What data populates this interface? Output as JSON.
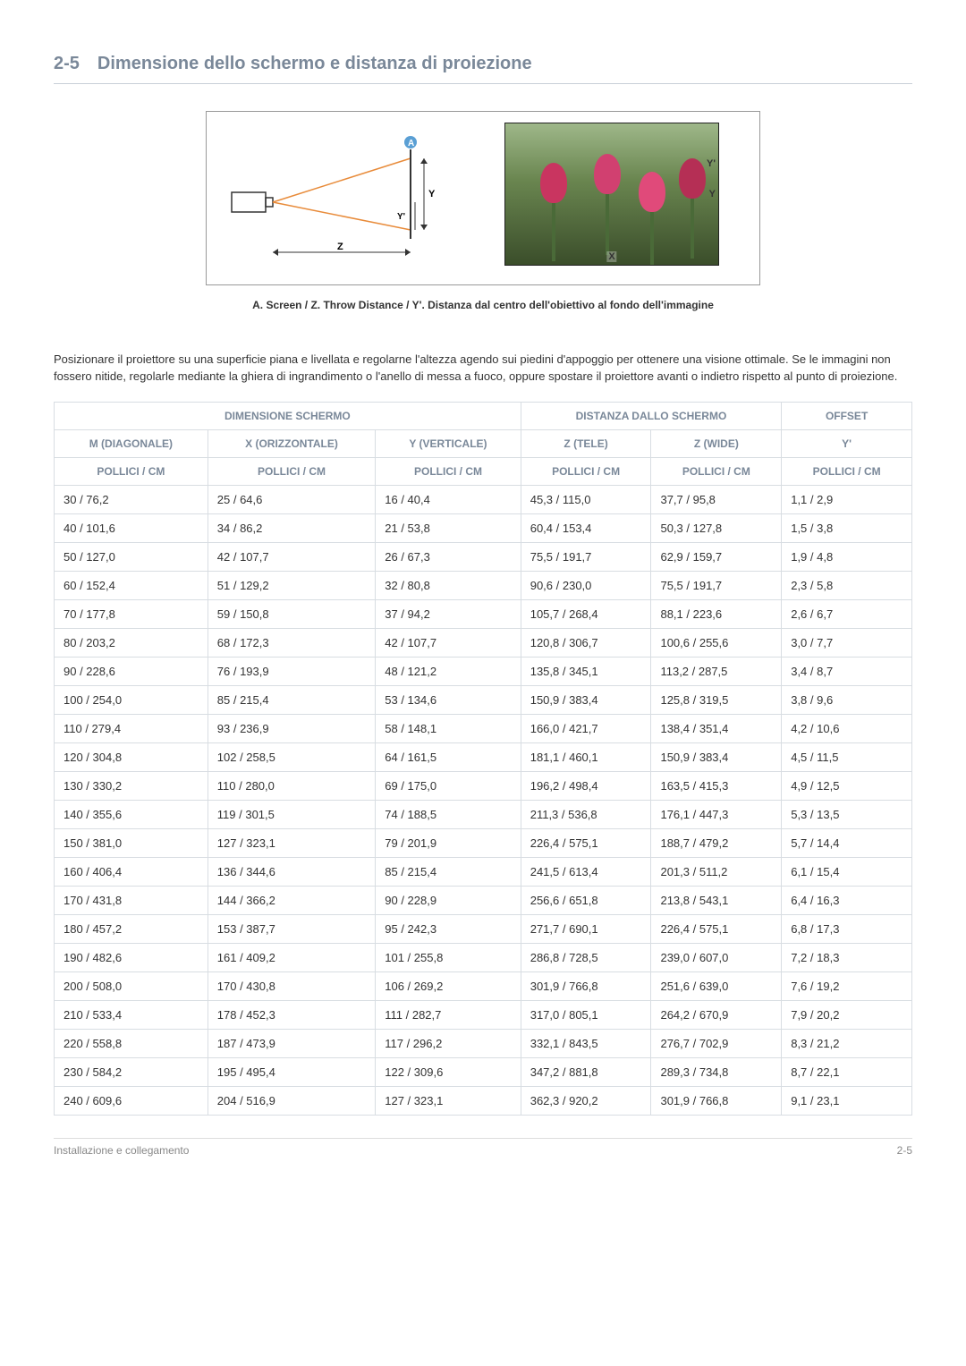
{
  "section": {
    "number": "2-5",
    "title": "Dimensione dello schermo e distanza di proiezione"
  },
  "diagram": {
    "caption": "A. Screen / Z. Throw Distance / Y'. Distanza dal centro dell'obiettivo al fondo dell'immagine",
    "labels": {
      "A": "A",
      "Z": "Z",
      "Y": "Y",
      "Yp": "Y'",
      "X": "X"
    }
  },
  "paragraph": "Posizionare il proiettore su una superficie piana e livellata e regolarne l'altezza agendo sui piedini d'appoggio per ottenere una visione ottimale. Se le immagini non fossero nitide, regolarle mediante la ghiera di ingrandimento o l'anello di messa a fuoco, oppure spostare il proiettore avanti o indietro rispetto al punto di proiezione.",
  "table": {
    "group_headers": [
      "DIMENSIONE SCHERMO",
      "DISTANZA DALLO SCHERMO",
      "OFFSET"
    ],
    "sub_headers": [
      "M (DIAGONALE)",
      "X (ORIZZONTALE)",
      "Y (VERTICALE)",
      "Z (TELE)",
      "Z (WIDE)",
      "Y'"
    ],
    "unit_header": "POLLICI / CM",
    "rows": [
      [
        "30 / 76,2",
        "25 / 64,6",
        "16 / 40,4",
        "45,3 / 115,0",
        "37,7 / 95,8",
        "1,1 / 2,9"
      ],
      [
        "40 / 101,6",
        "34 / 86,2",
        "21 / 53,8",
        "60,4 / 153,4",
        "50,3 / 127,8",
        "1,5 / 3,8"
      ],
      [
        "50 / 127,0",
        "42 / 107,7",
        "26 / 67,3",
        "75,5 / 191,7",
        "62,9 / 159,7",
        "1,9 / 4,8"
      ],
      [
        "60 / 152,4",
        "51 / 129,2",
        "32 / 80,8",
        "90,6 / 230,0",
        "75,5 / 191,7",
        "2,3 / 5,8"
      ],
      [
        "70 / 177,8",
        "59 / 150,8",
        "37 / 94,2",
        "105,7 / 268,4",
        "88,1 / 223,6",
        "2,6 / 6,7"
      ],
      [
        "80 / 203,2",
        "68 / 172,3",
        "42 / 107,7",
        "120,8 / 306,7",
        "100,6 / 255,6",
        "3,0 / 7,7"
      ],
      [
        "90 / 228,6",
        "76 / 193,9",
        "48 / 121,2",
        "135,8 / 345,1",
        "113,2 / 287,5",
        "3,4 / 8,7"
      ],
      [
        "100 / 254,0",
        "85 / 215,4",
        "53 / 134,6",
        "150,9 / 383,4",
        "125,8 / 319,5",
        "3,8 / 9,6"
      ],
      [
        "110 / 279,4",
        "93 / 236,9",
        "58 / 148,1",
        "166,0 / 421,7",
        "138,4 / 351,4",
        "4,2 / 10,6"
      ],
      [
        "120 / 304,8",
        "102 / 258,5",
        "64 / 161,5",
        "181,1 / 460,1",
        "150,9 / 383,4",
        "4,5 / 11,5"
      ],
      [
        "130 / 330,2",
        "110 / 280,0",
        "69 / 175,0",
        "196,2 / 498,4",
        "163,5 / 415,3",
        "4,9 / 12,5"
      ],
      [
        "140 / 355,6",
        "119 / 301,5",
        "74 / 188,5",
        "211,3 / 536,8",
        "176,1 / 447,3",
        "5,3 / 13,5"
      ],
      [
        "150 / 381,0",
        "127 / 323,1",
        "79 / 201,9",
        "226,4 / 575,1",
        "188,7 / 479,2",
        "5,7 / 14,4"
      ],
      [
        "160 / 406,4",
        "136 / 344,6",
        "85 / 215,4",
        "241,5 / 613,4",
        "201,3 / 511,2",
        "6,1 / 15,4"
      ],
      [
        "170 / 431,8",
        "144 / 366,2",
        "90 / 228,9",
        "256,6 / 651,8",
        "213,8 / 543,1",
        "6,4 / 16,3"
      ],
      [
        "180 / 457,2",
        "153 / 387,7",
        "95 / 242,3",
        "271,7 / 690,1",
        "226,4 / 575,1",
        "6,8 / 17,3"
      ],
      [
        "190 / 482,6",
        "161 / 409,2",
        "101 / 255,8",
        "286,8 / 728,5",
        "239,0 / 607,0",
        "7,2 / 18,3"
      ],
      [
        "200 / 508,0",
        "170 / 430,8",
        "106 / 269,2",
        "301,9 / 766,8",
        "251,6 / 639,0",
        "7,6 / 19,2"
      ],
      [
        "210 / 533,4",
        "178 / 452,3",
        "111 / 282,7",
        "317,0 / 805,1",
        "264,2 / 670,9",
        "7,9 / 20,2"
      ],
      [
        "220 / 558,8",
        "187 / 473,9",
        "117 / 296,2",
        "332,1 / 843,5",
        "276,7 / 702,9",
        "8,3 / 21,2"
      ],
      [
        "230 / 584,2",
        "195 / 495,4",
        "122 / 309,6",
        "347,2 / 881,8",
        "289,3 / 734,8",
        "8,7 / 22,1"
      ],
      [
        "240 / 609,6",
        "204 / 516,9",
        "127 / 323,1",
        "362,3 / 920,2",
        "301,9 / 766,8",
        "9,1 / 23,1"
      ]
    ]
  },
  "footer": {
    "left": "Installazione e collegamento",
    "right": "2-5"
  },
  "colors": {
    "heading": "#7a8899",
    "border": "#d8dde2",
    "text": "#333333",
    "accent_orange": "#e88b3a",
    "accent_blue": "#5a9fd4"
  }
}
